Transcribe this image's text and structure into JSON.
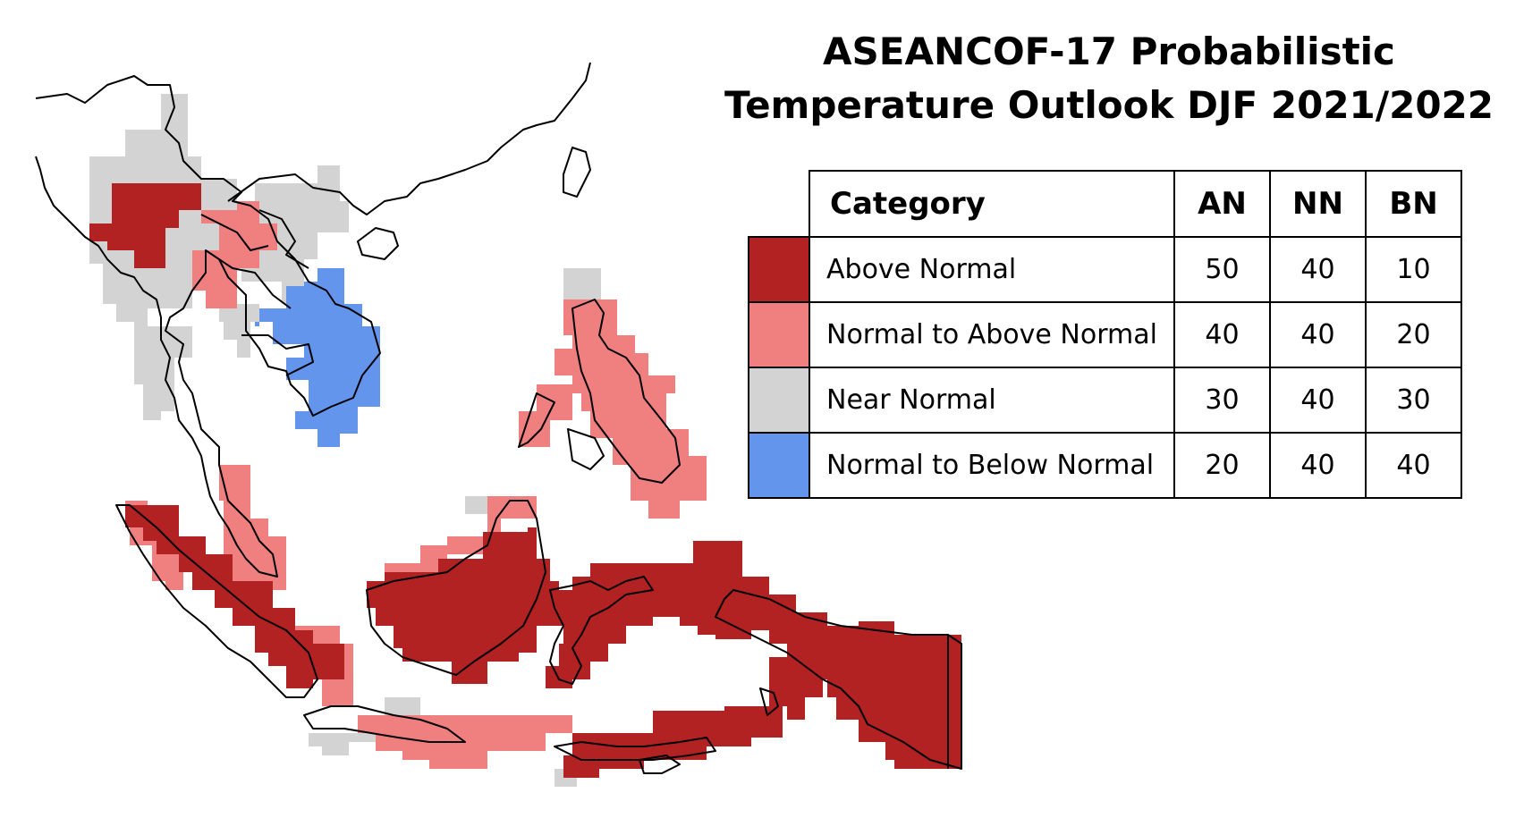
{
  "title": {
    "line1": "ASEANCOF-17 Probabilistic",
    "line2": "Temperature Outlook DJF 2021/2022"
  },
  "legend": {
    "headers": {
      "category": "Category",
      "an": "AN",
      "nn": "NN",
      "bn": "BN"
    },
    "rows": [
      {
        "label": "Above Normal",
        "color": "#B22222",
        "an": "50",
        "nn": "40",
        "bn": "10"
      },
      {
        "label": "Normal to Above Normal",
        "color": "#F08080",
        "an": "40",
        "nn": "40",
        "bn": "20"
      },
      {
        "label": "Near Normal",
        "color": "#D3D3D3",
        "an": "30",
        "nn": "40",
        "bn": "30"
      },
      {
        "label": "Normal to Below Normal",
        "color": "#6495ED",
        "an": "20",
        "nn": "40",
        "bn": "40"
      }
    ]
  },
  "map_regions": [
    {
      "name": "Northern Myanmar",
      "category": "Above Normal"
    },
    {
      "name": "Laos / Northern Vietnam",
      "category": "Normal to Above Normal"
    },
    {
      "name": "Thailand / Southern China",
      "category": "Near Normal"
    },
    {
      "name": "Southern Vietnam / Cambodia",
      "category": "Normal to Below Normal"
    },
    {
      "name": "Philippines",
      "category": "Normal to Above Normal"
    },
    {
      "name": "Peninsular Malaysia",
      "category": "Normal to Above Normal"
    },
    {
      "name": "Sumatra",
      "category": "Above Normal"
    },
    {
      "name": "Borneo",
      "category": "Above Normal"
    },
    {
      "name": "Sulawesi / Papua",
      "category": "Above Normal"
    },
    {
      "name": "Java",
      "category": "Near Normal"
    },
    {
      "name": "Nusa Tenggara",
      "category": "Above Normal"
    }
  ]
}
